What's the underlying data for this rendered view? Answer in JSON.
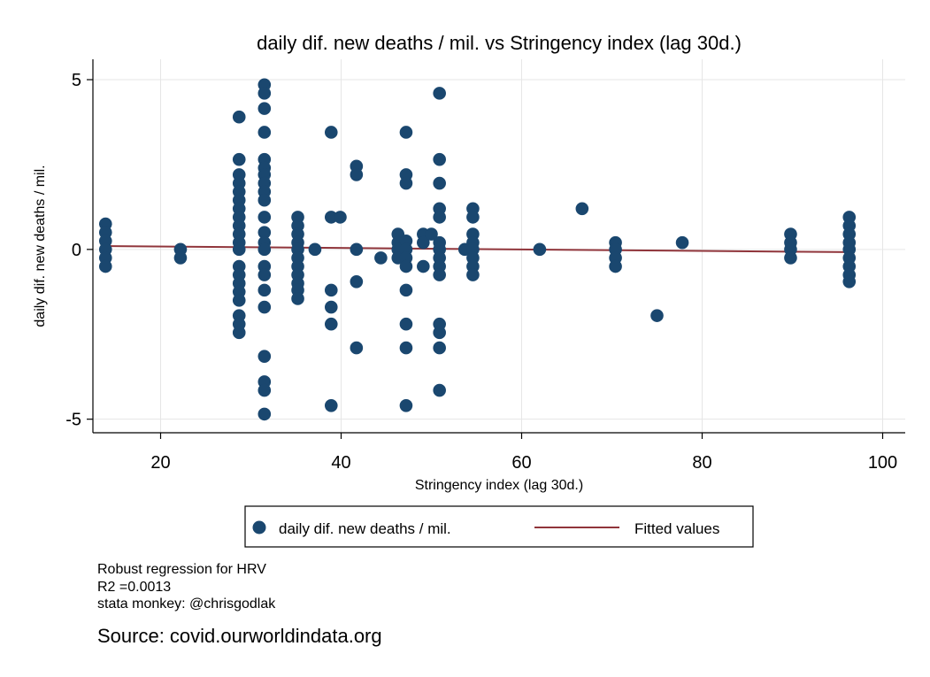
{
  "chart_data": {
    "type": "scatter",
    "title": "daily dif. new deaths / mil. vs Stringency index (lag 30d.)",
    "xlabel": "Stringency index (lag 30d.)",
    "ylabel": "daily dif. new deaths / mil.",
    "xlim": [
      12.5,
      102.5
    ],
    "ylim": [
      -5.4,
      5.6
    ],
    "xticks": [
      20,
      40,
      60,
      80,
      100
    ],
    "yticks": [
      -5,
      0,
      5
    ],
    "ytick_labels": [
      "-5",
      "0",
      "5"
    ],
    "grid": true,
    "legend_position": "bottom",
    "colors": {
      "points": "#1a476f",
      "fit": "#90353b"
    },
    "series": [
      {
        "name": "daily dif. new deaths / mil.",
        "kind": "scatter",
        "points": [
          [
            13.9,
            0.75
          ],
          [
            13.9,
            0.5
          ],
          [
            13.9,
            0.25
          ],
          [
            13.9,
            0
          ],
          [
            13.9,
            -0.25
          ],
          [
            13.9,
            -0.5
          ],
          [
            22.2,
            0
          ],
          [
            22.2,
            -0.25
          ],
          [
            28.7,
            3.9
          ],
          [
            28.7,
            2.65
          ],
          [
            28.7,
            2.2
          ],
          [
            28.7,
            1.95
          ],
          [
            28.7,
            1.7
          ],
          [
            28.7,
            1.45
          ],
          [
            28.7,
            1.2
          ],
          [
            28.7,
            0.95
          ],
          [
            28.7,
            0.7
          ],
          [
            28.7,
            0.45
          ],
          [
            28.7,
            0.2
          ],
          [
            28.7,
            0
          ],
          [
            28.7,
            -0.5
          ],
          [
            28.7,
            -0.75
          ],
          [
            28.7,
            -1
          ],
          [
            28.7,
            -1.25
          ],
          [
            28.7,
            -1.5
          ],
          [
            28.7,
            -1.95
          ],
          [
            28.7,
            -2.2
          ],
          [
            28.7,
            -2.45
          ],
          [
            31.5,
            4.85
          ],
          [
            31.5,
            4.6
          ],
          [
            31.5,
            4.15
          ],
          [
            31.5,
            3.45
          ],
          [
            31.5,
            2.65
          ],
          [
            31.5,
            2.4
          ],
          [
            31.5,
            2.2
          ],
          [
            31.5,
            1.95
          ],
          [
            31.5,
            1.7
          ],
          [
            31.5,
            1.45
          ],
          [
            31.5,
            0.95
          ],
          [
            31.5,
            0.5
          ],
          [
            31.5,
            0.2
          ],
          [
            31.5,
            0
          ],
          [
            31.5,
            -0.5
          ],
          [
            31.5,
            -0.75
          ],
          [
            31.5,
            -1.2
          ],
          [
            31.5,
            -1.7
          ],
          [
            31.5,
            -3.15
          ],
          [
            31.5,
            -3.9
          ],
          [
            31.5,
            -4.15
          ],
          [
            31.5,
            -4.85
          ],
          [
            35.2,
            0.95
          ],
          [
            35.2,
            0.7
          ],
          [
            35.2,
            0.45
          ],
          [
            35.2,
            0.2
          ],
          [
            35.2,
            0
          ],
          [
            35.2,
            -0.25
          ],
          [
            35.2,
            -0.5
          ],
          [
            35.2,
            -0.75
          ],
          [
            35.2,
            -1
          ],
          [
            35.2,
            -1.2
          ],
          [
            35.2,
            -1.45
          ],
          [
            37.1,
            0
          ],
          [
            38.9,
            3.45
          ],
          [
            38.9,
            0.95
          ],
          [
            38.9,
            -1.2
          ],
          [
            38.9,
            -1.7
          ],
          [
            38.9,
            -2.2
          ],
          [
            38.9,
            -4.6
          ],
          [
            39.9,
            0.95
          ],
          [
            41.7,
            2.45
          ],
          [
            41.7,
            2.2
          ],
          [
            41.7,
            0
          ],
          [
            41.7,
            -0.95
          ],
          [
            41.7,
            -2.9
          ],
          [
            44.4,
            -0.25
          ],
          [
            46.3,
            0.45
          ],
          [
            46.3,
            0.2
          ],
          [
            46.3,
            0
          ],
          [
            46.3,
            -0.25
          ],
          [
            47.2,
            3.45
          ],
          [
            47.2,
            2.2
          ],
          [
            47.2,
            1.95
          ],
          [
            47.2,
            0.25
          ],
          [
            47.2,
            0
          ],
          [
            47.2,
            -0.25
          ],
          [
            47.2,
            -0.5
          ],
          [
            47.2,
            -1.2
          ],
          [
            47.2,
            -2.2
          ],
          [
            47.2,
            -2.9
          ],
          [
            47.2,
            -4.6
          ],
          [
            49.1,
            0.45
          ],
          [
            49.1,
            0.2
          ],
          [
            49.1,
            -0.5
          ],
          [
            50,
            0.45
          ],
          [
            50.9,
            4.6
          ],
          [
            50.9,
            2.65
          ],
          [
            50.9,
            1.95
          ],
          [
            50.9,
            1.2
          ],
          [
            50.9,
            0.95
          ],
          [
            50.9,
            0.2
          ],
          [
            50.9,
            0
          ],
          [
            50.9,
            -0.25
          ],
          [
            50.9,
            -0.5
          ],
          [
            50.9,
            -0.75
          ],
          [
            50.9,
            -2.2
          ],
          [
            50.9,
            -2.45
          ],
          [
            50.9,
            -2.9
          ],
          [
            50.9,
            -4.15
          ],
          [
            53.7,
            0
          ],
          [
            54.6,
            1.2
          ],
          [
            54.6,
            0.95
          ],
          [
            54.6,
            0.45
          ],
          [
            54.6,
            0.2
          ],
          [
            54.6,
            0
          ],
          [
            54.6,
            -0.25
          ],
          [
            54.6,
            -0.5
          ],
          [
            54.6,
            -0.75
          ],
          [
            62,
            0
          ],
          [
            66.7,
            1.2
          ],
          [
            70.4,
            0.2
          ],
          [
            70.4,
            0
          ],
          [
            70.4,
            -0.25
          ],
          [
            70.4,
            -0.5
          ],
          [
            75,
            -1.95
          ],
          [
            77.8,
            0.2
          ],
          [
            89.8,
            0.45
          ],
          [
            89.8,
            0.2
          ],
          [
            89.8,
            0
          ],
          [
            89.8,
            -0.25
          ],
          [
            96.3,
            0.95
          ],
          [
            96.3,
            0.7
          ],
          [
            96.3,
            0.45
          ],
          [
            96.3,
            0.2
          ],
          [
            96.3,
            0
          ],
          [
            96.3,
            -0.25
          ],
          [
            96.3,
            -0.5
          ],
          [
            96.3,
            -0.75
          ],
          [
            96.3,
            -0.95
          ]
        ]
      },
      {
        "name": "Fitted values",
        "kind": "line",
        "points": [
          [
            13.9,
            0.1
          ],
          [
            96.3,
            -0.08
          ]
        ]
      }
    ]
  },
  "notes": {
    "line1": "Robust regression for HRV",
    "line2": "R2 =0.0013",
    "line3": "stata monkey: @chrisgodlak",
    "source": "Source: covid.ourworldindata.org"
  }
}
